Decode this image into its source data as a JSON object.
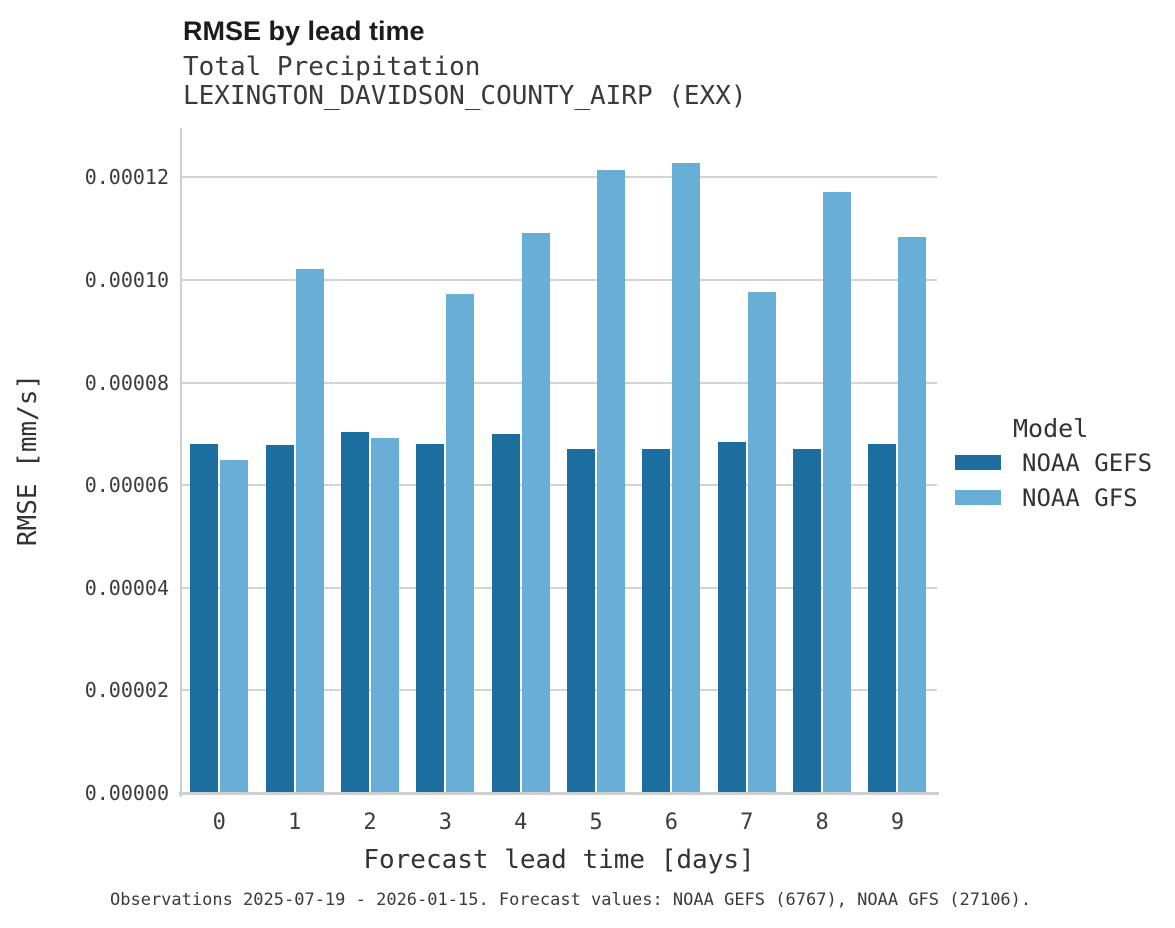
{
  "chart_data": {
    "type": "bar",
    "title": "RMSE by lead time",
    "subtitle": "Total Precipitation",
    "station_line": "LEXINGTON_DAVIDSON_COUNTY_AIRP (EXX)",
    "xlabel": "Forecast lead time [days]",
    "ylabel": "RMSE [mm/s]",
    "categories": [
      "0",
      "1",
      "2",
      "3",
      "4",
      "5",
      "6",
      "7",
      "8",
      "9"
    ],
    "series": [
      {
        "name": "NOAA GEFS",
        "color": "#1b6e9e",
        "values": [
          6.81e-05,
          6.79e-05,
          7.03e-05,
          6.81e-05,
          6.99e-05,
          6.71e-05,
          6.71e-05,
          6.85e-05,
          6.71e-05,
          6.8e-05
        ]
      },
      {
        "name": "NOAA GFS",
        "color": "#68aed6",
        "values": [
          6.49e-05,
          0.0001022,
          6.92e-05,
          9.72e-05,
          0.0001092,
          0.0001214,
          0.0001227,
          9.77e-05,
          0.0001171,
          0.0001084
        ]
      }
    ],
    "ytick_labels": [
      "0.00000",
      "0.00002",
      "0.00004",
      "0.00006",
      "0.00008",
      "0.00010",
      "0.00012"
    ],
    "ytick_values": [
      0,
      2e-05,
      4e-05,
      6e-05,
      8e-05,
      0.0001,
      0.00012
    ],
    "ylim": [
      0,
      0.0001296
    ],
    "grid": "horizontal",
    "legend_title": "Model",
    "legend_position": "right",
    "caption": "Observations 2025-07-19 - 2026-01-15. Forecast values: NOAA GEFS (6767), NOAA GFS (27106)."
  },
  "colors": {
    "gridline": "#d4d4d4",
    "spine": "#cfcfcf",
    "title_text": "#1c1c1c",
    "body_text": "#3a3a3a"
  }
}
